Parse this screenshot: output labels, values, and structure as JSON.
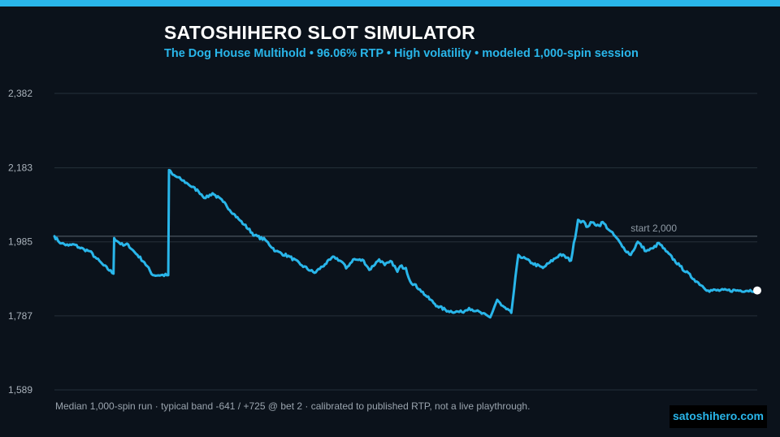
{
  "header": {
    "title": "SATOSHIHERO SLOT SIMULATOR",
    "subtitle": "The Dog House Multihold  •  96.06% RTP  •  High volatility  •  modeled 1,000-spin session"
  },
  "footer": {
    "note": "Median 1,000-spin run  ·  typical band -641 / +725 @ bet 2  ·  calibrated to published RTP, not a live playthrough.",
    "brand": "satoshihero.com"
  },
  "colors": {
    "accent": "#29b6ea",
    "background": "#0b121b",
    "grid": "#26303b",
    "reference_line": "#5a6570"
  },
  "chart_data": {
    "type": "line",
    "title": "",
    "xlabel": "",
    "ylabel": "",
    "x_range": [
      0,
      1000
    ],
    "ylim": [
      1589,
      2382
    ],
    "y_ticks": [
      1589,
      1787,
      1985,
      2183,
      2382
    ],
    "y_tick_labels": [
      "1,589",
      "1,787",
      "1,985",
      "2,183",
      "2,382"
    ],
    "grid": true,
    "reference_line": {
      "value": 2000,
      "label": "start 2,000"
    },
    "series": [
      {
        "x": [
          0,
          5,
          10,
          20,
          28,
          35,
          42,
          50,
          60,
          70,
          84,
          85,
          92,
          98,
          105,
          110,
          118,
          128,
          140,
          162,
          163,
          168,
          180,
          190,
          205,
          215,
          225,
          240,
          255,
          262,
          270,
          285,
          300,
          315,
          335,
          352,
          370,
          385,
          398,
          410,
          415,
          425,
          440,
          448,
          462,
          470,
          480,
          488,
          492,
          500,
          506,
          520,
          530,
          545,
          560,
          580,
          590,
          600,
          620,
          630,
          636,
          643,
          650,
          660,
          680,
          695,
          705,
          720,
          735,
          745,
          755,
          757,
          765,
          775,
          780,
          790,
          800,
          808,
          820,
          830,
          842,
          852,
          860,
          870,
          890,
          910,
          930,
          1000
        ],
        "y": [
          2000,
          1988,
          1981,
          1975,
          1978,
          1970,
          1965,
          1960,
          1940,
          1922,
          1900,
          1995,
          1983,
          1975,
          1978,
          1965,
          1950,
          1930,
          1896,
          1896,
          2177,
          2165,
          2152,
          2140,
          2120,
          2102,
          2115,
          2092,
          2060,
          2046,
          2031,
          2002,
          1990,
          1960,
          1945,
          1922,
          1902,
          1925,
          1945,
          1930,
          1914,
          1938,
          1935,
          1910,
          1938,
          1923,
          1932,
          1905,
          1920,
          1915,
          1880,
          1858,
          1838,
          1813,
          1800,
          1797,
          1808,
          1800,
          1783,
          1830,
          1815,
          1805,
          1795,
          1950,
          1928,
          1915,
          1930,
          1952,
          1935,
          2044,
          2035,
          2025,
          2037,
          2028,
          2038,
          2015,
          1995,
          1972,
          1950,
          1985,
          1960,
          1968,
          1982,
          1960,
          1920,
          1885,
          1855,
          1855
        ]
      }
    ]
  }
}
